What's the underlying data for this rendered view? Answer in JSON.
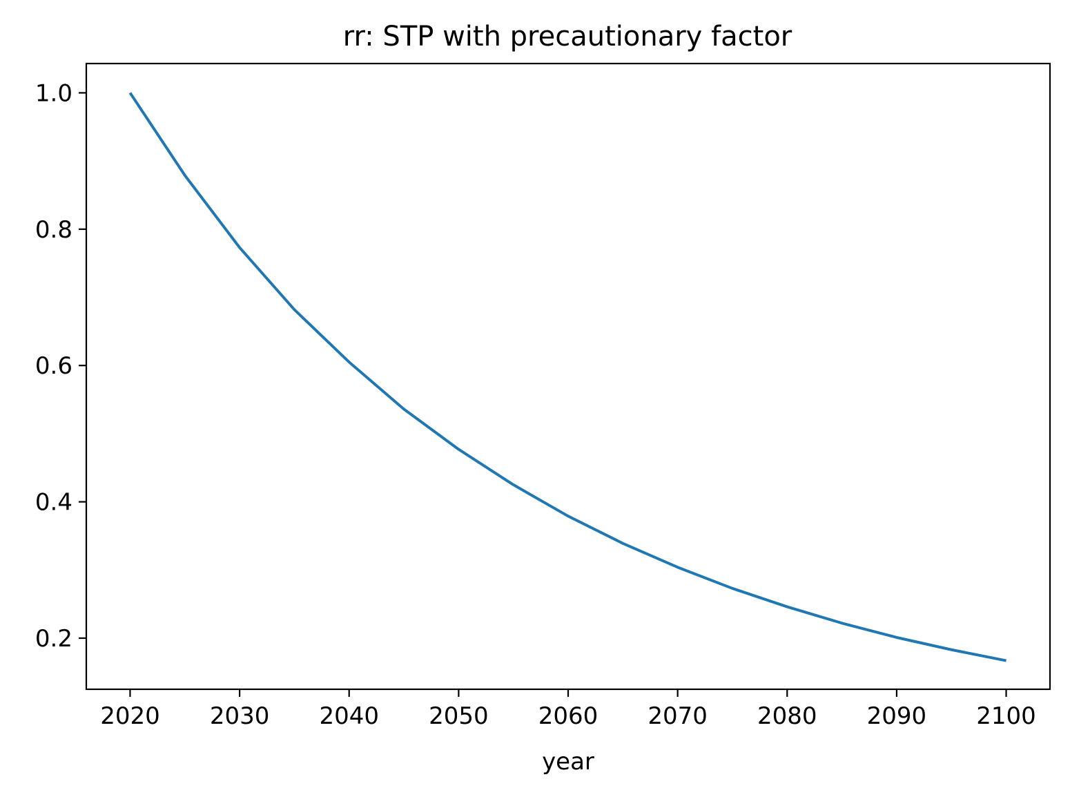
{
  "chart_data": {
    "type": "line",
    "title": "rr: STP with precautionary factor",
    "xlabel": "year",
    "ylabel": "",
    "xlim": [
      2016,
      2104
    ],
    "ylim": [
      0.125,
      1.043
    ],
    "xticks": [
      2020,
      2030,
      2040,
      2050,
      2060,
      2070,
      2080,
      2090,
      2100
    ],
    "xtick_labels": [
      "2020",
      "2030",
      "2040",
      "2050",
      "2060",
      "2070",
      "2080",
      "2090",
      "2100"
    ],
    "yticks": [
      0.2,
      0.4,
      0.6,
      0.8,
      1.0
    ],
    "ytick_labels": [
      "0.2",
      "0.4",
      "0.6",
      "0.8",
      "1.0"
    ],
    "grid": false,
    "legend": "none",
    "series": [
      {
        "color": "#1f77b4",
        "x": [
          2020,
          2025,
          2030,
          2035,
          2040,
          2045,
          2050,
          2055,
          2060,
          2065,
          2070,
          2075,
          2080,
          2085,
          2090,
          2095,
          2100
        ],
        "y": [
          1.0,
          0.879,
          0.773,
          0.682,
          0.605,
          0.536,
          0.477,
          0.425,
          0.379,
          0.339,
          0.304,
          0.273,
          0.246,
          0.222,
          0.201,
          0.183,
          0.167
        ]
      }
    ]
  }
}
